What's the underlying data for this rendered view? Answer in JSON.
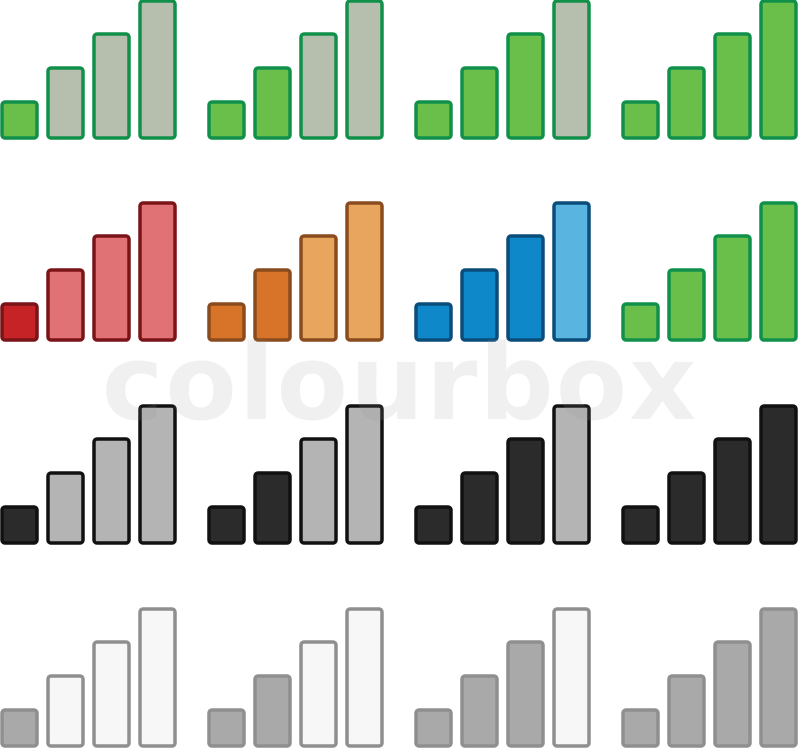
{
  "watermark": {
    "text": "colourbox"
  },
  "rows": [
    {
      "name": "green-signal-row",
      "items": [
        {
          "level": 1,
          "active_fill": "#6abf4b",
          "active_stroke": "#11904a",
          "inactive_fill": "#b6bfad",
          "inactive_stroke": "#11904a"
        },
        {
          "level": 2,
          "active_fill": "#6abf4b",
          "active_stroke": "#11904a",
          "inactive_fill": "#b6bfad",
          "inactive_stroke": "#11904a"
        },
        {
          "level": 3,
          "active_fill": "#6abf4b",
          "active_stroke": "#11904a",
          "inactive_fill": "#b6bfad",
          "inactive_stroke": "#11904a"
        },
        {
          "level": 4,
          "active_fill": "#6abf4b",
          "active_stroke": "#11904a",
          "inactive_fill": "#b6bfad",
          "inactive_stroke": "#11904a"
        }
      ]
    },
    {
      "name": "colored-signal-row",
      "items": [
        {
          "level": 1,
          "active_fill": "#c52326",
          "active_stroke": "#7a1418",
          "inactive_fill": "#e07276",
          "inactive_stroke": "#7a1418"
        },
        {
          "level": 2,
          "active_fill": "#d8742a",
          "active_stroke": "#8a4c1e",
          "inactive_fill": "#e8a55d",
          "inactive_stroke": "#8a4c1e"
        },
        {
          "level": 3,
          "active_fill": "#0e88c9",
          "active_stroke": "#0b4d7a",
          "inactive_fill": "#5ab4e0",
          "inactive_stroke": "#0b4d7a"
        },
        {
          "level": 4,
          "active_fill": "#6abf4b",
          "active_stroke": "#11904a",
          "inactive_fill": "#b6bfad",
          "inactive_stroke": "#11904a"
        }
      ]
    },
    {
      "name": "dark-signal-row",
      "items": [
        {
          "level": 1,
          "active_fill": "#2b2b2b",
          "active_stroke": "#111111",
          "inactive_fill": "#b4b4b4",
          "inactive_stroke": "#111111"
        },
        {
          "level": 2,
          "active_fill": "#2b2b2b",
          "active_stroke": "#111111",
          "inactive_fill": "#b4b4b4",
          "inactive_stroke": "#111111"
        },
        {
          "level": 3,
          "active_fill": "#2b2b2b",
          "active_stroke": "#111111",
          "inactive_fill": "#b4b4b4",
          "inactive_stroke": "#111111"
        },
        {
          "level": 4,
          "active_fill": "#2b2b2b",
          "active_stroke": "#111111",
          "inactive_fill": "#b4b4b4",
          "inactive_stroke": "#111111"
        }
      ]
    },
    {
      "name": "light-signal-row",
      "items": [
        {
          "level": 1,
          "active_fill": "#a9a9a9",
          "active_stroke": "#8f8f8f",
          "inactive_fill": "#f7f7f7",
          "inactive_stroke": "#8f8f8f"
        },
        {
          "level": 2,
          "active_fill": "#a9a9a9",
          "active_stroke": "#8f8f8f",
          "inactive_fill": "#f7f7f7",
          "inactive_stroke": "#8f8f8f"
        },
        {
          "level": 3,
          "active_fill": "#a9a9a9",
          "active_stroke": "#8f8f8f",
          "inactive_fill": "#f7f7f7",
          "inactive_stroke": "#8f8f8f"
        },
        {
          "level": 4,
          "active_fill": "#a9a9a9",
          "active_stroke": "#8f8f8f",
          "inactive_fill": "#f7f7f7",
          "inactive_stroke": "#8f8f8f"
        }
      ]
    }
  ]
}
